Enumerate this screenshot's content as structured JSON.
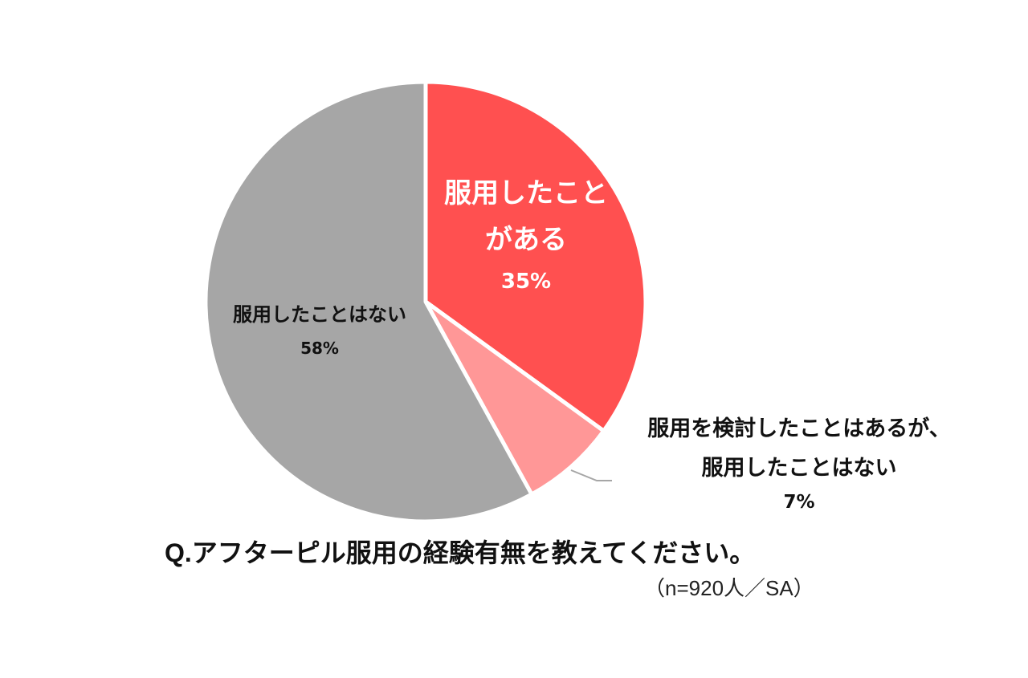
{
  "chart_data": {
    "type": "pie",
    "title": "Q.アフターピル服用の経験有無を教えてください。",
    "note": "（n=920人／SA）",
    "start_angle_deg": 0,
    "direction": "clockwise",
    "legend": "none (labels on slices)",
    "slices": [
      {
        "label": "服用したことがある",
        "label_lines": [
          "服用したこと",
          "がある"
        ],
        "value": 35,
        "value_label": "35%",
        "color": "#ff5050"
      },
      {
        "label": "服用を検討したことはあるが、服用したことはない",
        "label_lines": [
          "服用を検討したことはあるが、",
          "服用したことはない"
        ],
        "value": 7,
        "value_label": "7%",
        "color": "#ff9797"
      },
      {
        "label": "服用したことはない",
        "label_lines": [
          "服用したことはない"
        ],
        "value": 58,
        "value_label": "58%",
        "color": "#a6a6a6"
      }
    ]
  }
}
